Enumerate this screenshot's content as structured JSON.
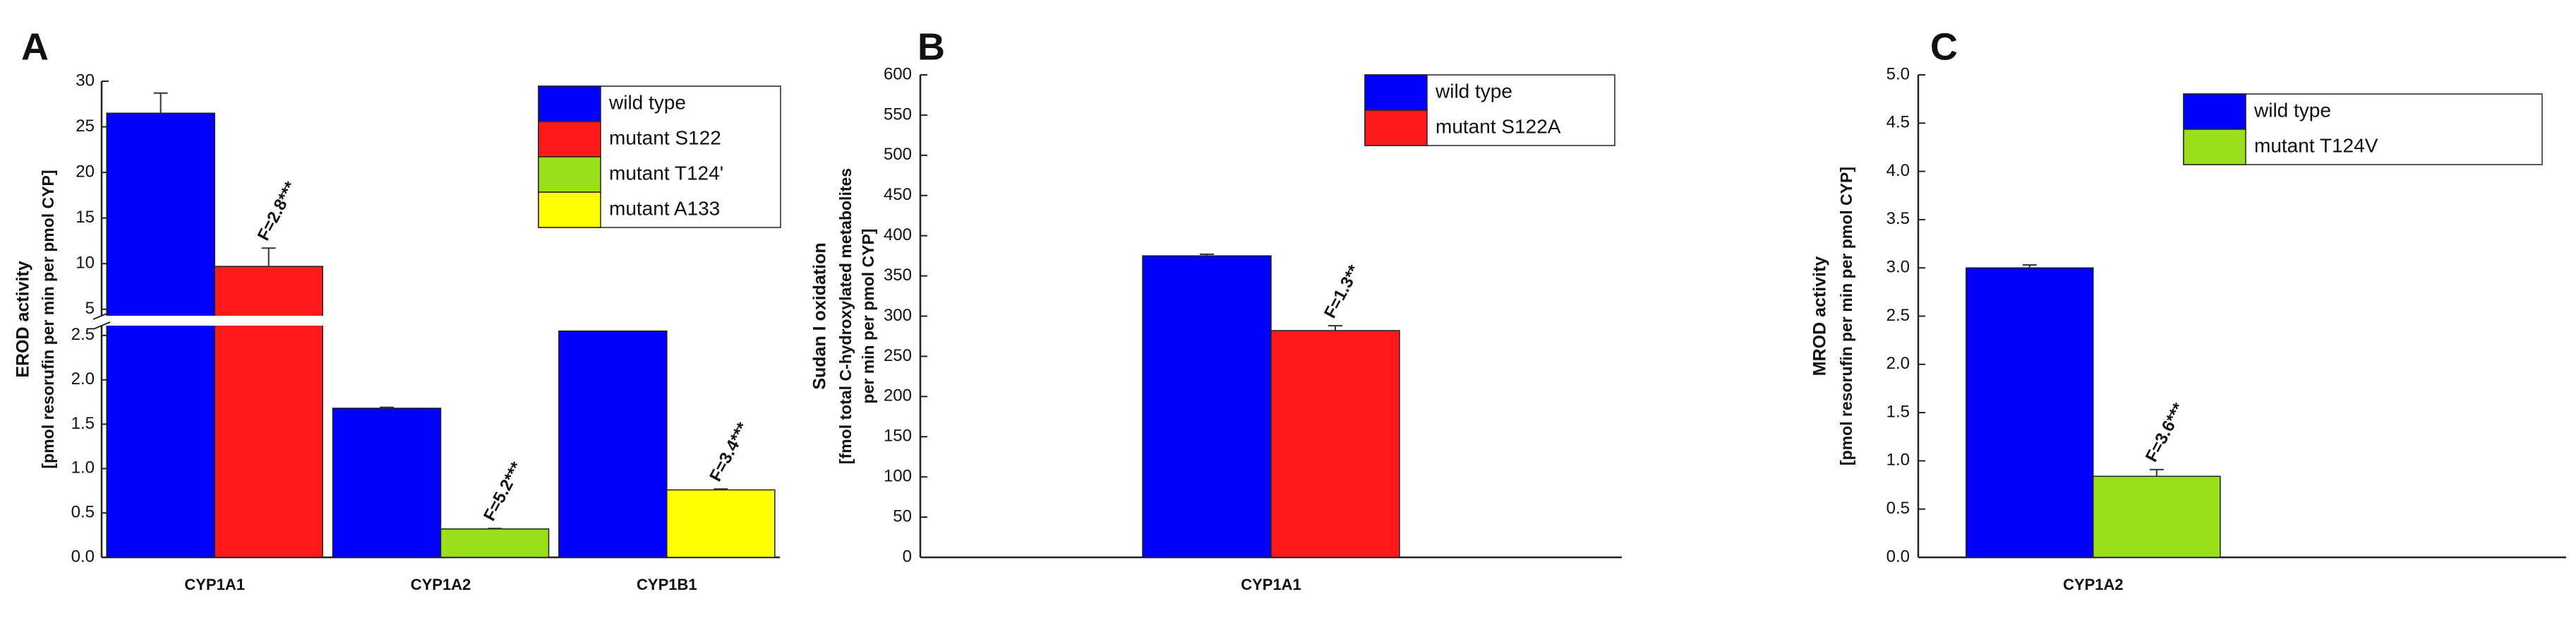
{
  "chart_data": [
    {
      "type": "bar",
      "label": "A",
      "ylabel": [
        "EROD activity",
        "[pmol resorufin per min per pmol CYP]"
      ],
      "categories": [
        "CYP1A1",
        "CYP1A2",
        "CYP1B1"
      ],
      "series": [
        {
          "name": "wild type",
          "color": "#0000ff",
          "values": [
            26.5,
            1.68,
            2.55
          ],
          "errors": [
            2.2,
            0.01,
            null
          ]
        },
        {
          "name": "mutant S122",
          "color": "#ff1a1a",
          "values": [
            9.7,
            null,
            null
          ],
          "errors": [
            2.0,
            null,
            null
          ]
        },
        {
          "name": "mutant T124'",
          "color": "#99e01a",
          "values": [
            null,
            0.32,
            null
          ],
          "errors": [
            null,
            0.005,
            null
          ]
        },
        {
          "name": "mutant A133",
          "color": "#ffff00",
          "values": [
            null,
            null,
            0.76
          ],
          "errors": [
            null,
            null,
            0.01
          ]
        }
      ],
      "ylim_lower": [
        0,
        2.65
      ],
      "ylim_upper": [
        3.9,
        30
      ],
      "yticks_lower": [
        {
          "value": 0,
          "label": "0.0"
        },
        0.5,
        {
          "value": 1,
          "label": "1.0"
        },
        1.5,
        {
          "value": 2,
          "label": "2.0"
        },
        2.5
      ],
      "yticks_upper": [
        5,
        10,
        15,
        20,
        25,
        30
      ],
      "annotations": [
        "F=2.8***",
        "F=5.2***",
        "F=3.4***"
      ]
    },
    {
      "type": "bar",
      "label": "B",
      "ylabel": [
        "Sudan I oxidation",
        "[fmol total C-hydroxylated metabolites",
        "per min per pmol CYP]"
      ],
      "categories": [
        "CYP1A1"
      ],
      "series": [
        {
          "name": "wild type",
          "color": "#0000ff",
          "values": [
            375
          ],
          "errors": [
            2
          ]
        },
        {
          "name": "mutant S122A",
          "color": "#ff1a1a",
          "values": [
            282
          ],
          "errors": [
            6
          ]
        }
      ],
      "ylim": [
        0,
        600
      ],
      "yticks": [
        0,
        50,
        100,
        150,
        200,
        250,
        300,
        350,
        400,
        450,
        500,
        550,
        600
      ],
      "annotations": [
        "F=1.3**"
      ]
    },
    {
      "type": "bar",
      "label": "C",
      "ylabel": [
        "MROD activity",
        "[pmol resorufin per min per pmol CYP]"
      ],
      "categories": [
        "CYP1A2"
      ],
      "series": [
        {
          "name": "wild type",
          "color": "#0000ff",
          "values": [
            3.0
          ],
          "errors": [
            0.03
          ]
        },
        {
          "name": "mutant T124V",
          "color": "#99e01a",
          "values": [
            0.84
          ],
          "errors": [
            0.07
          ]
        }
      ],
      "ylim": [
        0,
        5
      ],
      "yticks": [
        {
          "value": 0,
          "label": "0.0"
        },
        0.5,
        {
          "value": 1,
          "label": "1.0"
        },
        1.5,
        {
          "value": 2,
          "label": "2.0"
        },
        2.5,
        {
          "value": 3,
          "label": "3.0"
        },
        3.5,
        {
          "value": 4,
          "label": "4.0"
        },
        4.5,
        {
          "value": 5,
          "label": "5.0"
        }
      ],
      "annotations": [
        "F=3.6***"
      ]
    }
  ]
}
